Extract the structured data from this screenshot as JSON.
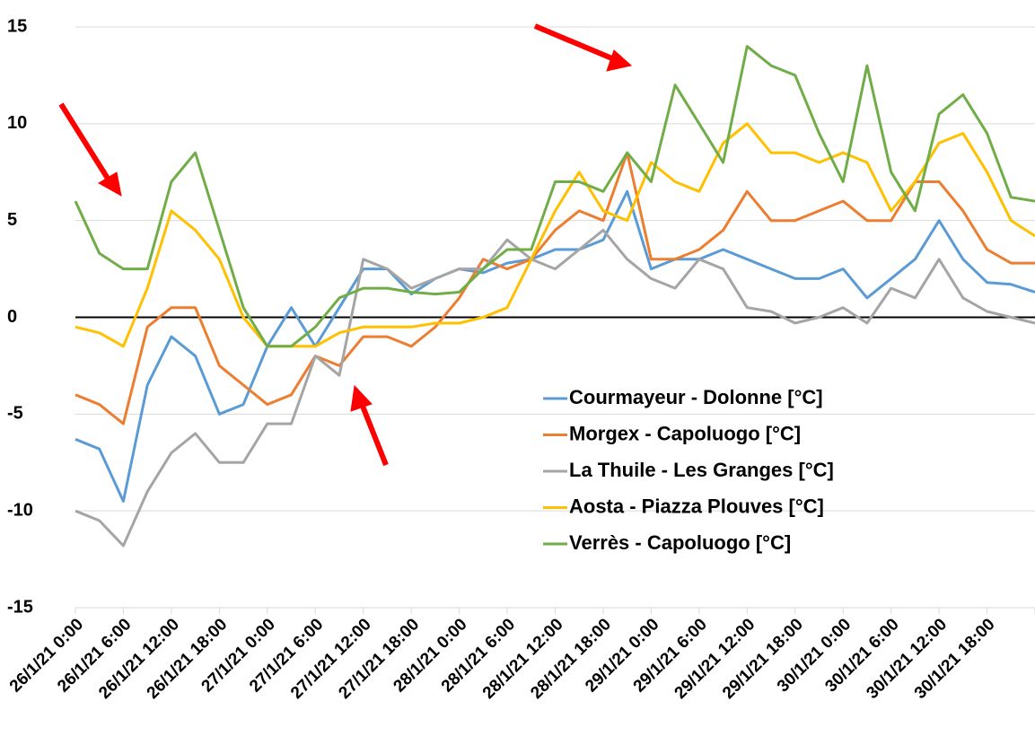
{
  "chart_data": {
    "type": "line",
    "categories": [
      "26/1/21 0:00",
      null,
      "26/1/21 6:00",
      null,
      "26/1/21 12:00",
      null,
      "26/1/21 18:00",
      null,
      "27/1/21 0:00",
      null,
      "27/1/21 6:00",
      null,
      "27/1/21 12:00",
      null,
      "27/1/21 18:00",
      null,
      "28/1/21 0:00",
      null,
      "28/1/21 6:00",
      null,
      "28/1/21 12:00",
      null,
      "28/1/21 18:00",
      null,
      "29/1/21 0:00",
      null,
      "29/1/21 6:00",
      null,
      "29/1/21 12:00",
      null,
      "29/1/21 18:00",
      null,
      "30/1/21 0:00",
      null,
      "30/1/21 6:00",
      null,
      "30/1/21 12:00",
      null,
      "30/1/21 18:00",
      null,
      null
    ],
    "series": [
      {
        "name": "Courmayeur - Dolonne [°C]",
        "color": "#5b9bd5",
        "values": [
          -6.3,
          -6.8,
          -9.5,
          -3.5,
          -1.0,
          -2.0,
          -5.0,
          -4.5,
          -1.5,
          0.5,
          -1.5,
          0.5,
          2.5,
          2.5,
          1.2,
          2.0,
          2.5,
          2.3,
          2.8,
          3.0,
          3.5,
          3.5,
          4.0,
          6.5,
          2.5,
          3.0,
          3.0,
          3.5,
          3.0,
          2.5,
          2.0,
          2.0,
          2.5,
          1.0,
          2.0,
          3.0,
          5.0,
          3.0,
          1.8,
          1.7,
          1.3
        ]
      },
      {
        "name": "Morgex - Capoluogo [°C]",
        "color": "#ed7d31",
        "values": [
          -4.0,
          -4.5,
          -5.5,
          -0.5,
          0.5,
          0.5,
          -2.5,
          -3.5,
          -4.5,
          -4.0,
          -2.0,
          -2.5,
          -1.0,
          -1.0,
          -1.5,
          -0.5,
          1.0,
          3.0,
          2.5,
          3.0,
          4.5,
          5.5,
          5.0,
          8.5,
          3.0,
          3.0,
          3.5,
          4.5,
          6.5,
          5.0,
          5.0,
          5.5,
          6.0,
          5.0,
          5.0,
          7.0,
          7.0,
          5.5,
          3.5,
          2.8,
          2.8
        ]
      },
      {
        "name": "La Thuile - Les Granges  [°C]",
        "color": "#a5a5a5",
        "values": [
          -10.0,
          -10.5,
          -11.8,
          -9.0,
          -7.0,
          -6.0,
          -7.5,
          -7.5,
          -5.5,
          -5.5,
          -2.0,
          -3.0,
          3.0,
          2.5,
          1.5,
          2.0,
          2.5,
          2.5,
          4.0,
          3.0,
          2.5,
          3.5,
          4.5,
          3.0,
          2.0,
          1.5,
          3.0,
          2.5,
          0.5,
          0.3,
          -0.3,
          0.0,
          0.5,
          -0.3,
          1.5,
          1.0,
          3.0,
          1.0,
          0.3,
          0.0,
          -0.3
        ]
      },
      {
        "name": "Aosta - Piazza Plouves  [°C]",
        "color": "#ffc000",
        "values": [
          -0.5,
          -0.8,
          -1.5,
          1.5,
          5.5,
          4.5,
          3.0,
          0.0,
          -1.5,
          -1.5,
          -1.5,
          -0.8,
          -0.5,
          -0.5,
          -0.5,
          -0.3,
          -0.3,
          0.0,
          0.5,
          3.0,
          5.5,
          7.5,
          5.5,
          5.0,
          8.0,
          7.0,
          6.5,
          9.0,
          10.0,
          8.5,
          8.5,
          8.0,
          8.5,
          8.0,
          5.5,
          7.0,
          9.0,
          9.5,
          7.5,
          5.0,
          4.2
        ]
      },
      {
        "name": "Verrès - Capoluogo  [°C]",
        "color": "#70ad47",
        "values": [
          6.0,
          3.3,
          2.5,
          2.5,
          7.0,
          8.5,
          4.5,
          0.5,
          -1.5,
          -1.5,
          -0.5,
          1.0,
          1.5,
          1.5,
          1.3,
          1.2,
          1.3,
          2.5,
          3.5,
          3.5,
          7.0,
          7.0,
          6.5,
          8.5,
          7.0,
          12.0,
          10.0,
          8.0,
          14.0,
          13.0,
          12.5,
          9.5,
          7.0,
          13.0,
          7.5,
          5.5,
          10.5,
          11.5,
          9.5,
          6.2,
          6.0
        ]
      }
    ],
    "ylim": [
      -15,
      15
    ],
    "yticks": [
      -15,
      -10,
      -5,
      0,
      5,
      10,
      15
    ],
    "grid": true,
    "legend": "center right"
  }
}
